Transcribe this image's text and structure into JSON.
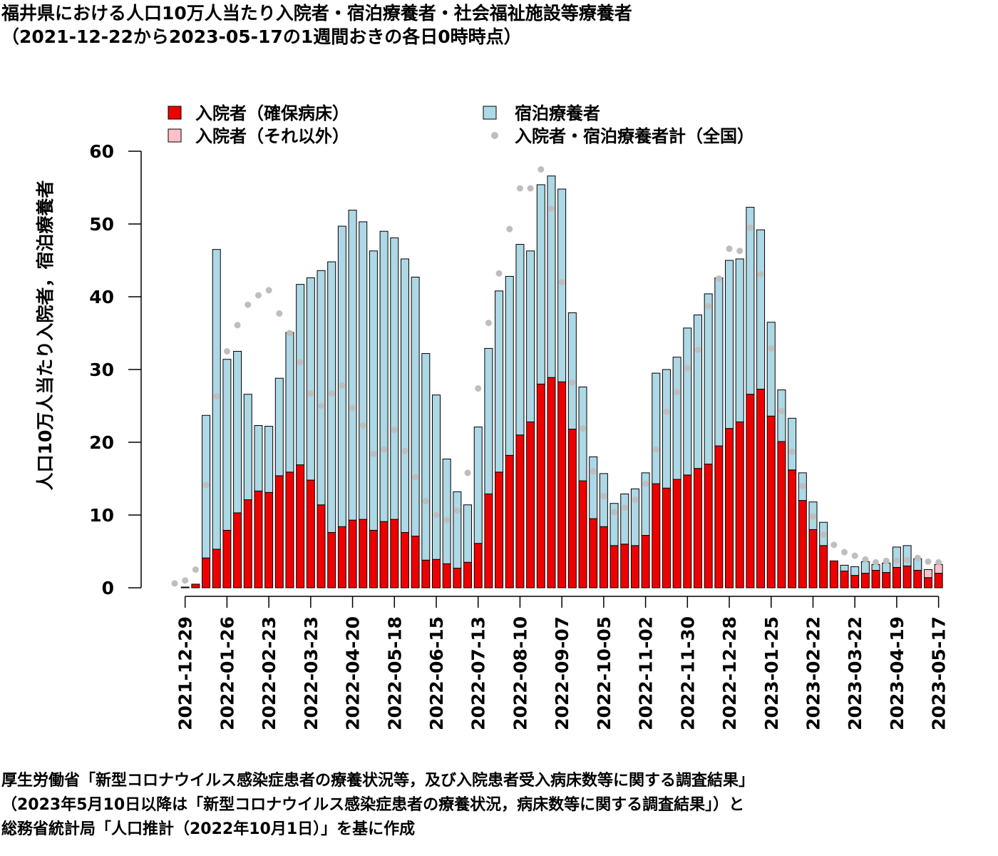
{
  "title_line1": "福井県における人口10万人当たり入院者・宿泊療養者・社会福祉施設等療養者",
  "title_line2": "（2021-12-22から2023-05-17の1週間おきの各日0時時点）",
  "source_line1": "厚生労働省「新型コロナウイルス感染症患者の療養状況等，及び入院患者受入病床数等に関する調査結果」",
  "source_line2": "（2023年5月10日以降は「新型コロナウイルス感染症患者の療養状況，病床数等に関する調査結果」）と",
  "source_line3": "総務省統計局「人口推計（2022年10月1日）」を基に作成",
  "colors": {
    "hosp_secured": "#ee0000",
    "hosp_other": "#ffc0cb",
    "hotel": "#add8e6",
    "national": "#bebebe"
  },
  "chart_data": {
    "type": "bar",
    "stacked": true,
    "ylabel": "人口10万人当たり入院者，宿泊療養者",
    "ylim": [
      0,
      60
    ],
    "yticks": [
      0,
      10,
      20,
      30,
      40,
      50,
      60
    ],
    "x_tick_labels": [
      "2021-12-29",
      "2022-01-26",
      "2022-02-23",
      "2022-03-23",
      "2022-04-20",
      "2022-05-18",
      "2022-06-15",
      "2022-07-13",
      "2022-08-10",
      "2022-09-07",
      "2022-10-05",
      "2022-11-02",
      "2022-11-30",
      "2022-12-28",
      "2023-01-25",
      "2023-02-22",
      "2023-03-22",
      "2023-04-19",
      "2023-05-17"
    ],
    "legend": {
      "hosp_secured": "入院者（確保病床）",
      "hosp_other": "入院者（それ以外）",
      "hotel": "宿泊療養者",
      "national": "入院者・宿泊療養者計（全国）"
    },
    "series": {
      "hosp_secured": [
        0,
        0.1,
        0.5,
        4.1,
        5.3,
        7.9,
        10.3,
        12.1,
        13.3,
        13.1,
        15.4,
        15.9,
        16.9,
        14.8,
        11.4,
        7.6,
        8.4,
        9.3,
        9.4,
        7.9,
        9.1,
        9.4,
        7.6,
        7.1,
        3.8,
        3.9,
        3.3,
        2.7,
        3.5,
        6.1,
        12.9,
        15.9,
        18.2,
        21.0,
        22.8,
        28.0,
        28.9,
        28.3,
        21.8,
        14.7,
        9.5,
        8.4,
        5.8,
        6.0,
        5.8,
        7.2,
        14.3,
        13.7,
        14.9,
        15.5,
        16.4,
        17.0,
        19.5,
        21.9,
        22.8,
        26.6,
        27.3,
        23.6,
        20.1,
        16.2,
        12.0,
        8.0,
        5.8,
        3.7,
        2.3,
        1.7,
        2.0,
        2.4,
        2.1,
        2.8,
        3.0,
        2.4,
        1.4,
        2.0
      ],
      "hosp_other": [
        0,
        0,
        0,
        0,
        0,
        0,
        0,
        0,
        0,
        0,
        0,
        0,
        0,
        0,
        0,
        0,
        0,
        0,
        0,
        0,
        0,
        0,
        0,
        0,
        0,
        0,
        0,
        0,
        0,
        0,
        0,
        0,
        0,
        0,
        0,
        0,
        0,
        0,
        0,
        0,
        0,
        0,
        0,
        0,
        0,
        0,
        0,
        0,
        0,
        0,
        0,
        0,
        0,
        0,
        0,
        0,
        0,
        0,
        0,
        0,
        0,
        0,
        0,
        0,
        0,
        0,
        0,
        0,
        0,
        0,
        0,
        0,
        1.1,
        1.2
      ],
      "hotel": [
        0,
        0,
        0,
        19.6,
        41.2,
        23.5,
        22.2,
        14.5,
        9.0,
        9.1,
        13.4,
        19.2,
        24.8,
        27.8,
        32.2,
        37.2,
        41.3,
        42.6,
        40.9,
        38.4,
        39.9,
        38.7,
        37.6,
        35.6,
        28.4,
        22.6,
        14.4,
        10.5,
        7.9,
        16.0,
        20.0,
        24.9,
        24.6,
        26.2,
        23.5,
        27.4,
        27.7,
        26.5,
        16.0,
        12.9,
        8.5,
        7.3,
        5.8,
        6.9,
        7.8,
        8.6,
        15.2,
        16.3,
        16.8,
        20.2,
        21.1,
        23.4,
        23.1,
        23.1,
        22.4,
        25.7,
        21.9,
        12.9,
        7.1,
        7.1,
        3.8,
        3.8,
        3.2,
        0,
        0.8,
        1.2,
        1.6,
        0.8,
        1.3,
        2.8,
        2.8,
        1.6,
        0,
        0
      ],
      "national": [
        0.6,
        1.0,
        2.5,
        14.1,
        26.3,
        32.5,
        36.1,
        38.9,
        40.2,
        40.9,
        37.7,
        35.0,
        31.0,
        26.7,
        25.0,
        26.7,
        27.8,
        24.7,
        22.3,
        18.4,
        19.0,
        21.7,
        18.8,
        15.2,
        11.9,
        10.0,
        9.3,
        10.6,
        15.8,
        27.4,
        36.4,
        43.2,
        49.3,
        54.9,
        54.9,
        57.5,
        52.1,
        42.0,
        28.2,
        21.9,
        16.0,
        12.6,
        10.4,
        11.0,
        12.1,
        14.3,
        19.0,
        24.2,
        26.9,
        30.2,
        32.7,
        38.7,
        42.5,
        46.6,
        46.3,
        49.5,
        43.1,
        32.9,
        24.3,
        18.7,
        14.0,
        9.8,
        7.3,
        5.9,
        4.9,
        4.4,
        3.9,
        3.5,
        3.7,
        3.7,
        3.8,
        4.1,
        3.6,
        3.5
      ]
    }
  }
}
